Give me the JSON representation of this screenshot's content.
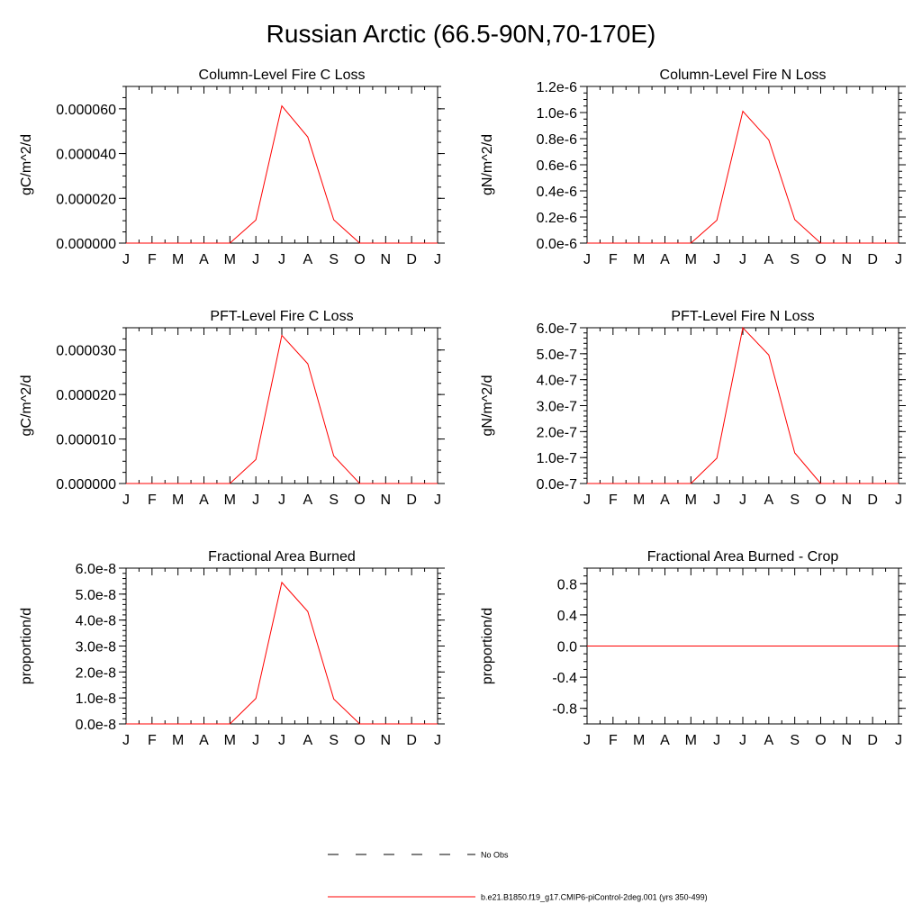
{
  "figure": {
    "title": "Russian Arctic (66.5-90N,70-170E)"
  },
  "colors": {
    "model_line": "#ff0000",
    "obs_line": "#000000",
    "axis": "#000000"
  },
  "month_labels": [
    "J",
    "F",
    "M",
    "A",
    "M",
    "J",
    "J",
    "A",
    "S",
    "O",
    "N",
    "D",
    "J"
  ],
  "chart_data": [
    {
      "type": "line",
      "id": "col-c",
      "title": "Column-Level Fire C Loss",
      "ylabel": "gC/m^2/d",
      "xlabel": "",
      "ylim": [
        0,
        7e-05
      ],
      "ticks": [
        0,
        2e-05,
        4e-05,
        6e-05
      ],
      "tick_labels": [
        "0.000000",
        "0.000020",
        "0.000040",
        "0.000060"
      ],
      "minor_step": 5e-06,
      "series": [
        {
          "name": "b.e21.B1850.f19_g17.CMIP6-piControl-2deg.001 (yrs 350-499)",
          "values": [
            0,
            0,
            0,
            0,
            0,
            1.03e-05,
            6.13e-05,
            4.74e-05,
            1.04e-05,
            0,
            0,
            0,
            0
          ]
        }
      ]
    },
    {
      "type": "line",
      "id": "col-n",
      "title": "Column-Level Fire N Loss",
      "ylabel": "gN/m^2/d",
      "xlabel": "",
      "ylim": [
        0,
        1.2e-06
      ],
      "ticks": [
        0,
        2e-07,
        4e-07,
        6e-07,
        8e-07,
        1e-06,
        1.2e-06
      ],
      "tick_labels": [
        "0.0e-6",
        "0.2e-6",
        "0.4e-6",
        "0.6e-6",
        "0.8e-6",
        "1.0e-6",
        "1.2e-6"
      ],
      "minor_step": 5e-08,
      "series": [
        {
          "name": "b.e21.B1850.f19_g17.CMIP6-piControl-2deg.001 (yrs 350-499)",
          "values": [
            0,
            0,
            0,
            0,
            0,
            1.75e-07,
            1.01e-06,
            7.9e-07,
            1.8e-07,
            0,
            0,
            0,
            0
          ]
        }
      ]
    },
    {
      "type": "line",
      "id": "pft-c",
      "title": "PFT-Level Fire C Loss",
      "ylabel": "gC/m^2/d",
      "xlabel": "",
      "ylim": [
        0,
        3.5e-05
      ],
      "ticks": [
        0,
        1e-05,
        2e-05,
        3e-05
      ],
      "tick_labels": [
        "0.000000",
        "0.000010",
        "0.000020",
        "0.000030"
      ],
      "minor_step": 2.5e-06,
      "series": [
        {
          "name": "b.e21.B1850.f19_g17.CMIP6-piControl-2deg.001 (yrs 350-499)",
          "values": [
            0,
            0,
            0,
            0,
            0,
            5.4e-06,
            3.33e-05,
            2.69e-05,
            6.2e-06,
            0,
            0,
            0,
            0
          ]
        }
      ]
    },
    {
      "type": "line",
      "id": "pft-n",
      "title": "PFT-Level Fire N Loss",
      "ylabel": "gN/m^2/d",
      "xlabel": "",
      "ylim": [
        0,
        6e-07
      ],
      "ticks": [
        0,
        1e-07,
        2e-07,
        3e-07,
        4e-07,
        5e-07,
        6e-07
      ],
      "tick_labels": [
        "0.0e-7",
        "1.0e-7",
        "2.0e-7",
        "3.0e-7",
        "4.0e-7",
        "5.0e-7",
        "6.0e-7"
      ],
      "minor_step": 2e-08,
      "series": [
        {
          "name": "b.e21.B1850.f19_g17.CMIP6-piControl-2deg.001 (yrs 350-499)",
          "values": [
            0,
            0,
            0,
            0,
            0,
            9.75e-08,
            6e-07,
            4.95e-07,
            1.18e-07,
            0,
            0,
            0,
            0
          ]
        }
      ]
    },
    {
      "type": "line",
      "id": "frac",
      "title": "Fractional Area Burned",
      "ylabel": "proportion/d",
      "xlabel": "",
      "ylim": [
        0,
        6e-08
      ],
      "ticks": [
        0,
        1e-08,
        2e-08,
        3e-08,
        4e-08,
        5e-08,
        6e-08
      ],
      "tick_labels": [
        "0.0e-8",
        "1.0e-8",
        "2.0e-8",
        "3.0e-8",
        "4.0e-8",
        "5.0e-8",
        "6.0e-8"
      ],
      "minor_step": 2e-09,
      "series": [
        {
          "name": "b.e21.B1850.f19_g17.CMIP6-piControl-2deg.001 (yrs 350-499)",
          "values": [
            0,
            0,
            0,
            0,
            0,
            9.8e-09,
            5.45e-08,
            4.33e-08,
            9.6e-09,
            0,
            0,
            0,
            0
          ]
        }
      ]
    },
    {
      "type": "line",
      "id": "frac-crop",
      "title": "Fractional Area Burned - Crop",
      "ylabel": "proportion/d",
      "xlabel": "",
      "ylim": [
        -1,
        1
      ],
      "ticks": [
        -0.8,
        -0.4,
        0,
        0.4,
        0.8
      ],
      "tick_labels": [
        "-0.8",
        "-0.4",
        "0.0",
        "0.4",
        "0.8"
      ],
      "minor_step": 0.1,
      "series": [
        {
          "name": "b.e21.B1850.f19_g17.CMIP6-piControl-2deg.001 (yrs 350-499)",
          "values": [
            0,
            0,
            0,
            0,
            0,
            0,
            0,
            0,
            0,
            0,
            0,
            0,
            0
          ]
        }
      ]
    }
  ],
  "legend": {
    "entries": [
      {
        "label": "No Obs",
        "style": "dashed"
      },
      {
        "label": "b.e21.B1850.f19_g17.CMIP6-piControl-2deg.001 (yrs 350-499)",
        "style": "solid"
      }
    ]
  }
}
